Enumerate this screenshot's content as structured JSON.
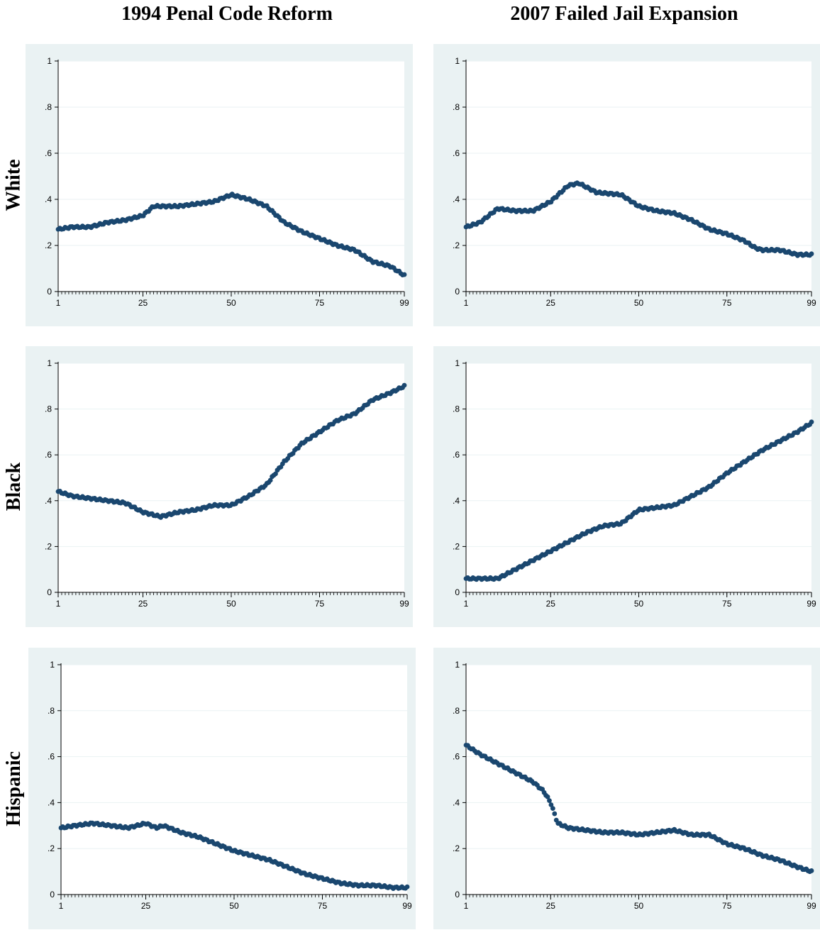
{
  "column_titles": [
    "1994 Penal Code Reform",
    "2007 Failed Jail Expansion"
  ],
  "row_titles": [
    "White",
    "Black",
    "Hispanic"
  ],
  "colors": {
    "panel_background": "#eaf2f3",
    "marker": "#1a476f",
    "grid": "#eaf2f3"
  },
  "chart_data": [
    {
      "type": "scatter",
      "column": "1994 Penal Code Reform",
      "row": "White",
      "x_range": [
        1,
        99
      ],
      "ylim": [
        0,
        1
      ],
      "x_tick_labels": [
        "1",
        "25",
        "50",
        "75",
        "99"
      ],
      "y_tick_labels": [
        "0",
        ".2",
        ".4",
        ".6",
        ".8",
        "1"
      ],
      "anchors_x": [
        1,
        5,
        10,
        15,
        20,
        25,
        28,
        35,
        45,
        50,
        55,
        60,
        65,
        70,
        75,
        80,
        85,
        90,
        95,
        99
      ],
      "anchors_y": [
        0.27,
        0.28,
        0.28,
        0.3,
        0.31,
        0.33,
        0.37,
        0.37,
        0.39,
        0.42,
        0.4,
        0.37,
        0.3,
        0.26,
        0.23,
        0.2,
        0.18,
        0.13,
        0.11,
        0.07
      ]
    },
    {
      "type": "scatter",
      "column": "2007 Failed Jail Expansion",
      "row": "White",
      "x_range": [
        1,
        99
      ],
      "ylim": [
        0,
        1
      ],
      "x_tick_labels": [
        "1",
        "25",
        "50",
        "75",
        "99"
      ],
      "y_tick_labels": [
        "0",
        ".2",
        ".4",
        ".6",
        ".8",
        "1"
      ],
      "anchors_x": [
        1,
        5,
        10,
        15,
        20,
        25,
        30,
        33,
        38,
        45,
        50,
        55,
        60,
        65,
        70,
        75,
        80,
        83,
        85,
        90,
        95,
        99
      ],
      "anchors_y": [
        0.28,
        0.3,
        0.36,
        0.35,
        0.35,
        0.39,
        0.46,
        0.47,
        0.43,
        0.42,
        0.37,
        0.35,
        0.34,
        0.31,
        0.27,
        0.25,
        0.22,
        0.19,
        0.18,
        0.18,
        0.16,
        0.16
      ]
    },
    {
      "type": "scatter",
      "column": "1994 Penal Code Reform",
      "row": "Black",
      "x_range": [
        1,
        99
      ],
      "ylim": [
        0,
        1
      ],
      "x_tick_labels": [
        "1",
        "25",
        "50",
        "75",
        "99"
      ],
      "y_tick_labels": [
        "0",
        ".2",
        ".4",
        ".6",
        ".8",
        "1"
      ],
      "anchors_x": [
        1,
        5,
        10,
        15,
        20,
        25,
        30,
        35,
        40,
        45,
        50,
        55,
        60,
        65,
        70,
        75,
        80,
        85,
        90,
        95,
        99
      ],
      "anchors_y": [
        0.44,
        0.42,
        0.41,
        0.4,
        0.39,
        0.35,
        0.33,
        0.35,
        0.36,
        0.38,
        0.38,
        0.42,
        0.47,
        0.57,
        0.65,
        0.7,
        0.75,
        0.78,
        0.84,
        0.87,
        0.9
      ]
    },
    {
      "type": "scatter",
      "column": "2007 Failed Jail Expansion",
      "row": "Black",
      "x_range": [
        1,
        99
      ],
      "ylim": [
        0,
        1
      ],
      "x_tick_labels": [
        "1",
        "25",
        "50",
        "75",
        "99"
      ],
      "y_tick_labels": [
        "0",
        ".2",
        ".4",
        ".6",
        ".8",
        "1"
      ],
      "anchors_x": [
        1,
        5,
        10,
        15,
        20,
        25,
        30,
        35,
        40,
        45,
        50,
        55,
        60,
        65,
        70,
        75,
        80,
        85,
        90,
        95,
        99
      ],
      "anchors_y": [
        0.06,
        0.06,
        0.06,
        0.1,
        0.14,
        0.18,
        0.22,
        0.26,
        0.29,
        0.3,
        0.36,
        0.37,
        0.38,
        0.42,
        0.46,
        0.52,
        0.57,
        0.62,
        0.66,
        0.7,
        0.74
      ]
    },
    {
      "type": "scatter",
      "column": "1994 Penal Code Reform",
      "row": "Hispanic",
      "x_range": [
        1,
        99
      ],
      "ylim": [
        0,
        1
      ],
      "x_tick_labels": [
        "1",
        "25",
        "50",
        "75",
        "99"
      ],
      "y_tick_labels": [
        "0",
        ".2",
        ".4",
        ".6",
        ".8",
        "1"
      ],
      "anchors_x": [
        1,
        5,
        10,
        15,
        20,
        25,
        28,
        30,
        35,
        40,
        45,
        50,
        55,
        60,
        65,
        70,
        75,
        80,
        85,
        90,
        95,
        99
      ],
      "anchors_y": [
        0.29,
        0.3,
        0.31,
        0.3,
        0.29,
        0.31,
        0.29,
        0.3,
        0.27,
        0.25,
        0.22,
        0.19,
        0.17,
        0.15,
        0.12,
        0.09,
        0.07,
        0.05,
        0.04,
        0.04,
        0.03,
        0.03
      ]
    },
    {
      "type": "scatter",
      "column": "2007 Failed Jail Expansion",
      "row": "Hispanic",
      "x_range": [
        1,
        99
      ],
      "ylim": [
        0,
        1
      ],
      "x_tick_labels": [
        "1",
        "25",
        "50",
        "75",
        "99"
      ],
      "y_tick_labels": [
        "0",
        ".2",
        ".4",
        ".6",
        ".8",
        "1"
      ],
      "anchors_x": [
        1,
        5,
        10,
        15,
        20,
        23,
        25,
        27,
        30,
        35,
        40,
        45,
        50,
        55,
        60,
        65,
        70,
        75,
        80,
        85,
        90,
        95,
        99
      ],
      "anchors_y": [
        0.65,
        0.61,
        0.57,
        0.53,
        0.49,
        0.45,
        0.4,
        0.31,
        0.29,
        0.28,
        0.27,
        0.27,
        0.26,
        0.27,
        0.28,
        0.26,
        0.26,
        0.22,
        0.2,
        0.17,
        0.15,
        0.12,
        0.1
      ]
    }
  ]
}
